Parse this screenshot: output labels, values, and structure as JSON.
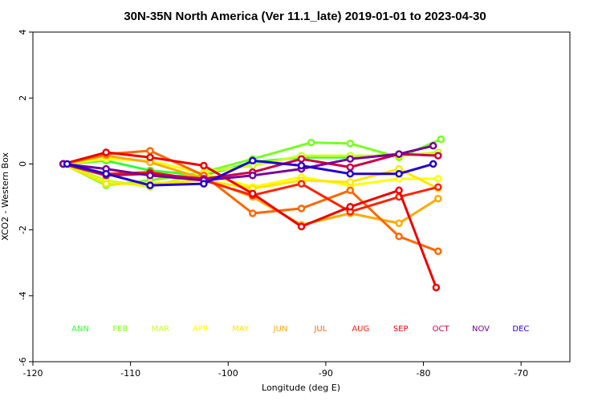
{
  "chart_data": {
    "type": "line",
    "title": "30N-35N North America (Ver 11.1_late)   2019-01-01 to 2023-04-30",
    "xlabel": "Longitude (deg E)",
    "ylabel": "XCO2 - Western Box",
    "xlim": [
      -120,
      -65
    ],
    "ylim": [
      -6,
      4
    ],
    "xticks": [
      -120,
      -110,
      -100,
      -90,
      -80,
      -70
    ],
    "yticks": [
      -6,
      -4,
      -2,
      0,
      2,
      4
    ],
    "series": [
      {
        "name": "ANN",
        "color": "#33ff33",
        "x": [
          -116.9,
          -112.5,
          -108,
          -102.5,
          -97.5,
          -92.5,
          -87.5,
          -82.5,
          -78.5
        ],
        "y": [
          0,
          0.1,
          -0.2,
          -0.35,
          0.05,
          0.2,
          0.2,
          0.3,
          0.3
        ]
      },
      {
        "name": "FEB",
        "color": "#77ff22",
        "x": [
          -116.9,
          -112.5,
          -108,
          -102.5,
          -97.5,
          -91.5,
          -87.5,
          -82.5,
          -78.2
        ],
        "y": [
          0,
          -0.65,
          -0.5,
          -0.25,
          0.15,
          0.65,
          0.62,
          0.2,
          0.75
        ]
      },
      {
        "name": "MAR",
        "color": "#ccff22",
        "x": [
          -116.9,
          -112.5,
          -108,
          -102.5,
          -97.5,
          -92.5,
          -87.5,
          -82.5,
          -78.5
        ],
        "y": [
          0,
          -0.5,
          -0.7,
          -0.25,
          -0.05,
          0.25,
          0.25,
          0.25,
          0.35
        ]
      },
      {
        "name": "APR",
        "color": "#ffff00",
        "x": [
          -116.9,
          -112.5,
          -108,
          -102.5,
          -97.5,
          -92.5,
          -87.5,
          -82.5,
          -78.5
        ],
        "y": [
          0,
          0.15,
          0.1,
          -0.3,
          -0.7,
          -0.4,
          -0.65,
          -0.45,
          -0.45
        ]
      },
      {
        "name": "MAY",
        "color": "#ffe600",
        "x": [
          -116.9,
          -112.5,
          -108,
          -102.5,
          -97.5,
          -92.5,
          -87.5,
          -82.5,
          -78.5
        ],
        "y": [
          0,
          -0.6,
          -0.6,
          -0.5,
          -0.75,
          -0.5,
          -0.55,
          -0.15,
          -0.75
        ]
      },
      {
        "name": "JUN",
        "color": "#ffaa00",
        "x": [
          -116.9,
          -112.5,
          -108,
          -102.5,
          -97.5,
          -92.5,
          -87.5,
          -82.5,
          -78.5
        ],
        "y": [
          0,
          0.25,
          0.05,
          -0.45,
          -1.0,
          -1.85,
          -1.5,
          -1.8,
          -1.05
        ]
      },
      {
        "name": "JUL",
        "color": "#ff6600",
        "x": [
          -116.9,
          -112.5,
          -108,
          -102.5,
          -97.5,
          -92.5,
          -87.5,
          -82.5,
          -78.5
        ],
        "y": [
          0,
          0.3,
          0.4,
          -0.35,
          -1.5,
          -1.35,
          -0.8,
          -2.2,
          -2.65
        ]
      },
      {
        "name": "AUG",
        "color": "#ff2200",
        "x": [
          -116.9,
          -112.5,
          -108,
          -102.5,
          -97.5,
          -92.5,
          -87.5,
          -82.5,
          -78.5
        ],
        "y": [
          0,
          -0.3,
          -0.25,
          -0.5,
          -0.95,
          -0.6,
          -1.45,
          -1.0,
          -0.7
        ]
      },
      {
        "name": "SEP",
        "color": "#ee0000",
        "x": [
          -116.9,
          -112.5,
          -108,
          -102.5,
          -97.5,
          -92.5,
          -87.5,
          -82.5,
          -78.7
        ],
        "y": [
          0,
          0.35,
          0.2,
          -0.05,
          -0.9,
          -1.9,
          -1.3,
          -0.8,
          -3.75
        ]
      },
      {
        "name": "OCT",
        "color": "#cc0044",
        "x": [
          -116.9,
          -112.5,
          -108,
          -102.5,
          -97.5,
          -92.5,
          -87.5,
          -82.5,
          -78.5
        ],
        "y": [
          0,
          -0.35,
          -0.3,
          -0.45,
          -0.25,
          0.15,
          -0.1,
          0.3,
          0.25
        ]
      },
      {
        "name": "NOV",
        "color": "#770099",
        "x": [
          -116.9,
          -112.5,
          -108,
          -102.5,
          -97.5,
          -92.5,
          -87.5,
          -82.5,
          -79
        ],
        "y": [
          0,
          -0.15,
          -0.35,
          -0.5,
          -0.35,
          -0.15,
          0.15,
          0.3,
          0.55
        ]
      },
      {
        "name": "DEC",
        "color": "#2200cc",
        "x": [
          -116.5,
          -112.5,
          -108,
          -102.5,
          -97.5,
          -92.5,
          -87.5,
          -82.5,
          -79
        ],
        "y": [
          0,
          -0.3,
          -0.65,
          -0.6,
          0.1,
          -0.05,
          -0.3,
          -0.3,
          0.0
        ]
      }
    ]
  }
}
